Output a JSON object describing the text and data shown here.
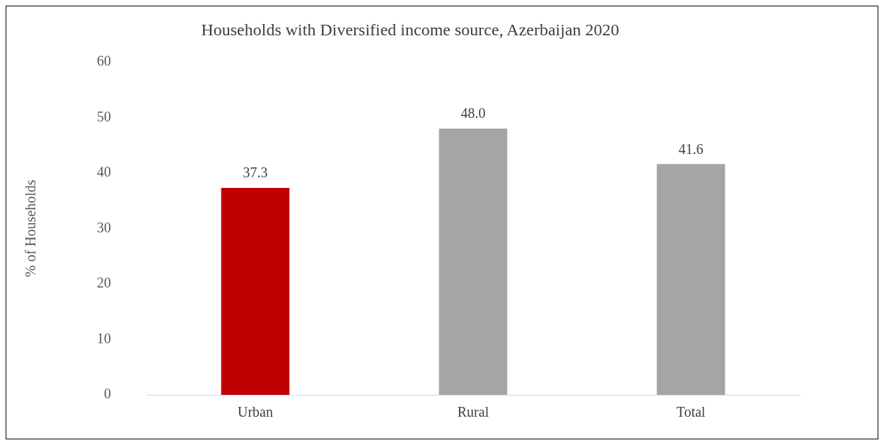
{
  "chart_data": {
    "type": "bar",
    "title": "Households with Diversified income source, Azerbaijan 2020",
    "ylabel": "% of Households",
    "categories": [
      "Urban",
      "Rural",
      "Total"
    ],
    "values": [
      37.3,
      48.0,
      41.6
    ],
    "colors": [
      "#c00000",
      "#a5a5a5",
      "#a5a5a5"
    ],
    "value_labels": [
      "37.3",
      "48.0",
      "41.6"
    ],
    "ylim": [
      0,
      60
    ],
    "yticks": [
      0,
      10,
      20,
      30,
      40,
      50,
      60
    ],
    "grid": false,
    "legend": false
  }
}
